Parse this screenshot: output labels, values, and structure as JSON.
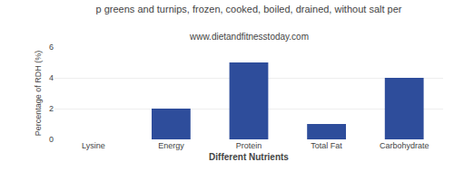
{
  "chart_data": {
    "type": "bar",
    "title": "p greens and turnips, frozen, cooked, boiled, drained, without salt per",
    "subtitle": "www.dietandfitnesstoday.com",
    "categories": [
      "Lysine",
      "Energy",
      "Protein",
      "Total Fat",
      "Carbohydrate"
    ],
    "values": [
      0,
      2.0,
      5.0,
      1.0,
      4.0
    ],
    "color": "#2e4d9b",
    "xlabel": "Different Nutrients",
    "ylabel": "Percentage of RDH (%)",
    "ylim": [
      0,
      6
    ],
    "yticks": [
      0,
      2,
      4,
      6
    ],
    "grid": true
  }
}
